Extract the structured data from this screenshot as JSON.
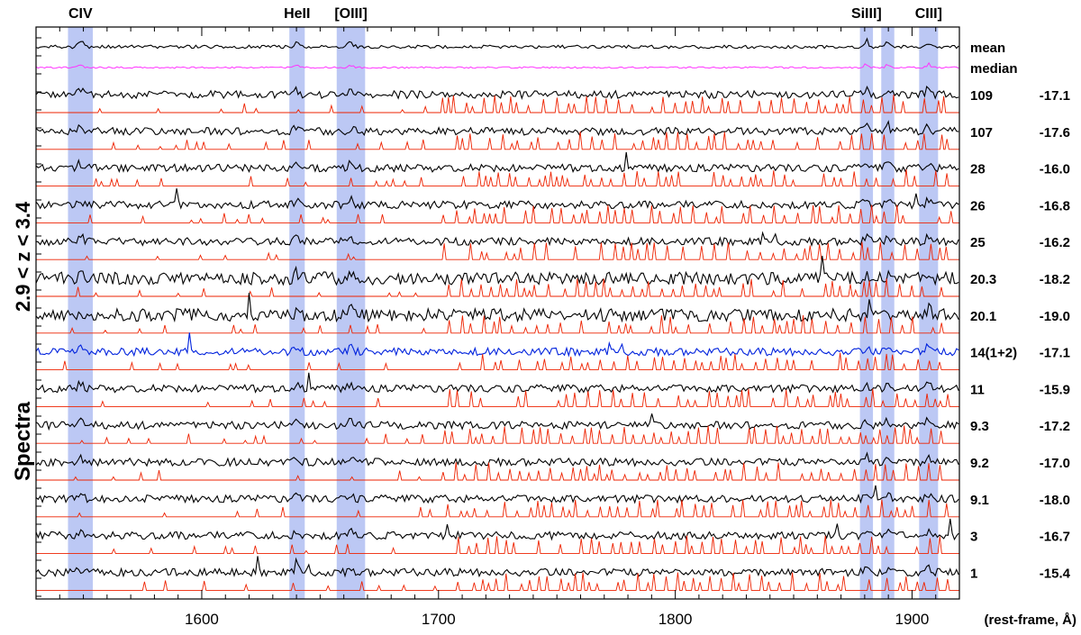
{
  "chart_data": {
    "type": "line",
    "title": "",
    "ylabel": "Spectra",
    "ylabel_sub": "2.9 < z < 3.4",
    "xlabel": "(rest-frame, Å)",
    "xlim": [
      1530,
      1920
    ],
    "xticks": [
      1600,
      1700,
      1800,
      1900
    ],
    "grid": false,
    "highlight_lines": [
      {
        "label": "CIV",
        "range": [
          1543.5,
          1554
        ]
      },
      {
        "label": "HeII",
        "range": [
          1637,
          1643.5
        ]
      },
      {
        "label": "[OIII]",
        "range": [
          1657,
          1669
        ]
      },
      {
        "label": "SiIII]",
        "range": [
          1878,
          1883.5
        ]
      },
      {
        "label": "",
        "range": [
          1887,
          1892.5
        ]
      },
      {
        "label": "CIII]",
        "range": [
          1903,
          1911
        ]
      }
    ],
    "stack_items": [
      {
        "name": "mean",
        "value": "",
        "color": "#000000",
        "kind": "mean"
      },
      {
        "name": "median",
        "value": "",
        "color": "#ff33ff",
        "kind": "median"
      },
      {
        "name": "109",
        "value": "-17.1",
        "color": "#000000",
        "kind": "spectrum"
      },
      {
        "name": "107",
        "value": "-17.6",
        "color": "#000000",
        "kind": "spectrum"
      },
      {
        "name": "28",
        "value": "-16.0",
        "color": "#000000",
        "kind": "spectrum"
      },
      {
        "name": "26",
        "value": "-16.8",
        "color": "#000000",
        "kind": "spectrum"
      },
      {
        "name": "25",
        "value": "-16.2",
        "color": "#000000",
        "kind": "spectrum"
      },
      {
        "name": "20.3",
        "value": "-18.2",
        "color": "#000000",
        "kind": "spectrum"
      },
      {
        "name": "20.1",
        "value": "-19.0",
        "color": "#000000",
        "kind": "spectrum"
      },
      {
        "name": "14(1+2)",
        "value": "-17.1",
        "color": "#0022dd",
        "kind": "spectrum"
      },
      {
        "name": "11",
        "value": "-15.9",
        "color": "#000000",
        "kind": "spectrum"
      },
      {
        "name": "9.3",
        "value": "-17.2",
        "color": "#000000",
        "kind": "spectrum"
      },
      {
        "name": "9.2",
        "value": "-17.0",
        "color": "#000000",
        "kind": "spectrum"
      },
      {
        "name": "9.1",
        "value": "-18.0",
        "color": "#000000",
        "kind": "spectrum"
      },
      {
        "name": "3",
        "value": "-16.7",
        "color": "#000000",
        "kind": "spectrum"
      },
      {
        "name": "1",
        "value": "-15.4",
        "color": "#000000",
        "kind": "spectrum"
      }
    ],
    "colors": {
      "sky": "#ee2200",
      "band": "#bcc8f4",
      "median": "#ff33ff",
      "blue": "#0022dd"
    }
  }
}
